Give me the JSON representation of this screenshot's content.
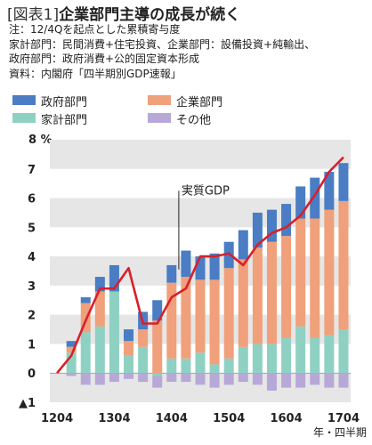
{
  "header": {
    "bracket": "[図表1]",
    "title": "企業部門主導の成長が続く"
  },
  "notes": [
    "注：12/4Qを起点とした累積寄与度",
    "家計部門：民間消費+住宅投資、企業部門：設備投資+純輸出、",
    "政府部門：政府消費+公的固定資本形成",
    "資料：内閣府「四半期別GDP速報」"
  ],
  "legend": [
    {
      "label": "政府部門",
      "color": "#4a7dc4"
    },
    {
      "label": "企業部門",
      "color": "#f0a07a"
    },
    {
      "label": "家計部門",
      "color": "#8ed1c3"
    },
    {
      "label": "その他",
      "color": "#b8a8d8"
    }
  ],
  "chart_data": {
    "type": "bar",
    "stacked": true,
    "unit_label": "%",
    "x_axis_title": "年・四半期",
    "ylim": [
      -1,
      8
    ],
    "y_ticks": [
      {
        "value": 8,
        "label": "8"
      },
      {
        "value": 7,
        "label": "7"
      },
      {
        "value": 6,
        "label": "6"
      },
      {
        "value": 5,
        "label": "5"
      },
      {
        "value": 4,
        "label": "4"
      },
      {
        "value": 3,
        "label": "3"
      },
      {
        "value": 2,
        "label": "2"
      },
      {
        "value": 1,
        "label": "1"
      },
      {
        "value": 0,
        "label": "0"
      },
      {
        "value": -1,
        "label": "▲1"
      }
    ],
    "x_tick_labels": [
      {
        "index": 0,
        "label": "1204"
      },
      {
        "index": 4,
        "label": "1304"
      },
      {
        "index": 8,
        "label": "1404"
      },
      {
        "index": 12,
        "label": "1504"
      },
      {
        "index": 16,
        "label": "1604"
      },
      {
        "index": 20,
        "label": "1704"
      }
    ],
    "categories": [
      "1204",
      "1301",
      "1302",
      "1303",
      "1304",
      "1401",
      "1402",
      "1403",
      "1404",
      "1501",
      "1502",
      "1503",
      "1504",
      "1601",
      "1602",
      "1603",
      "1604",
      "1701",
      "1702",
      "1703",
      "1704"
    ],
    "series": [
      {
        "name": "家計部門",
        "color": "#8ed1c3",
        "values": [
          0,
          0.7,
          1.4,
          1.6,
          2.8,
          0.6,
          0.9,
          -0.1,
          0.5,
          0.5,
          0.7,
          0.3,
          0.5,
          0.9,
          1.0,
          1.0,
          1.2,
          1.6,
          1.2,
          1.3,
          1.5
        ]
      },
      {
        "name": "企業部門",
        "color": "#f0a07a",
        "values": [
          0,
          0.2,
          1.0,
          1.2,
          0.0,
          0.5,
          0.6,
          1.8,
          2.6,
          2.8,
          2.5,
          2.9,
          3.1,
          3.0,
          3.3,
          3.5,
          3.5,
          3.7,
          4.1,
          4.3,
          4.4
        ]
      },
      {
        "name": "政府部門",
        "color": "#4a7dc4",
        "values": [
          0,
          0.2,
          0.2,
          0.5,
          0.9,
          0.4,
          0.6,
          0.7,
          0.6,
          0.9,
          0.8,
          0.9,
          0.9,
          1.0,
          1.2,
          1.1,
          1.1,
          1.1,
          1.4,
          1.3,
          1.3
        ]
      },
      {
        "name": "その他",
        "color": "#b8a8d8",
        "values": [
          0,
          -0.1,
          -0.4,
          -0.4,
          -0.3,
          -0.2,
          -0.3,
          -0.4,
          -0.3,
          -0.3,
          -0.4,
          -0.5,
          -0.4,
          -0.3,
          -0.4,
          -0.6,
          -0.5,
          -0.5,
          -0.4,
          -0.5,
          -0.5
        ]
      }
    ],
    "line": {
      "name": "実質GDP",
      "color": "#d8202a",
      "values": [
        0,
        0.6,
        1.8,
        2.9,
        2.9,
        3.6,
        1.7,
        1.7,
        2.6,
        2.9,
        4.0,
        4.0,
        4.1,
        3.7,
        4.4,
        4.8,
        5.0,
        5.4,
        6.1,
        6.9,
        7.4
      ]
    },
    "annotation": {
      "text": "実質GDP",
      "index": 9
    }
  }
}
